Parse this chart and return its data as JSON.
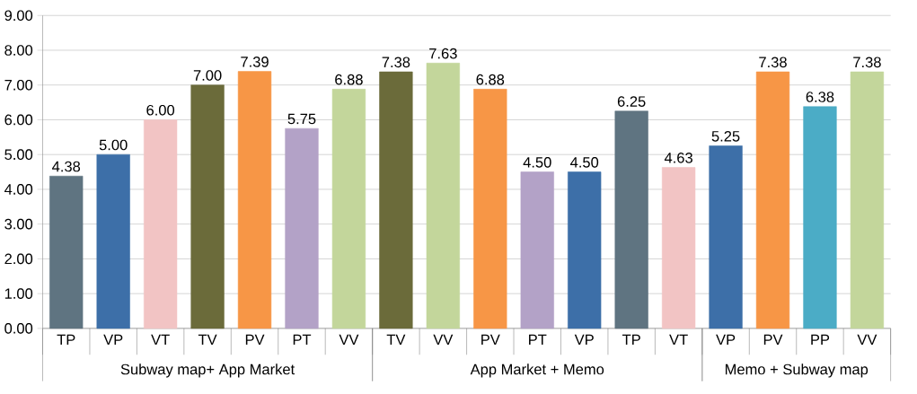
{
  "chart_data": {
    "type": "bar",
    "categories": [
      "TP",
      "VP",
      "VT",
      "TV",
      "PV",
      "PT",
      "VV",
      "TV",
      "VV",
      "PV",
      "PT",
      "VP",
      "TP",
      "VT",
      "VP",
      "PV",
      "PP",
      "VV"
    ],
    "values": [
      4.38,
      5.0,
      6.0,
      7.0,
      7.39,
      5.75,
      6.88,
      7.38,
      7.63,
      6.88,
      4.5,
      4.5,
      6.25,
      4.63,
      5.25,
      7.38,
      6.38,
      7.38
    ],
    "value_labels": [
      "4.38",
      "5.00",
      "6.00",
      "7.00",
      "7.39",
      "5.75",
      "6.88",
      "7.38",
      "7.63",
      "6.88",
      "4.50",
      "4.50",
      "6.25",
      "4.63",
      "5.25",
      "7.38",
      "6.38",
      "7.38"
    ],
    "colors": [
      "#5f7481",
      "#3d6fa8",
      "#f2c4c4",
      "#6b6b3a",
      "#f79646",
      "#b3a2c7",
      "#c3d69b",
      "#6b6b3a",
      "#c3d69b",
      "#f79646",
      "#b3a2c7",
      "#3d6fa8",
      "#5f7481",
      "#f2c4c4",
      "#3d6fa8",
      "#f79646",
      "#4bacc6",
      "#c3d69b"
    ],
    "ylim": [
      0,
      9
    ],
    "yticks": [
      {
        "value": 0,
        "label": "0.00"
      },
      {
        "value": 1,
        "label": "1.00"
      },
      {
        "value": 2,
        "label": "2.00"
      },
      {
        "value": 3,
        "label": "3.00"
      },
      {
        "value": 4,
        "label": "4.00"
      },
      {
        "value": 5,
        "label": "5.00"
      },
      {
        "value": 6,
        "label": "6.00"
      },
      {
        "value": 7,
        "label": "7.00"
      },
      {
        "value": 8,
        "label": "8.00"
      },
      {
        "value": 9,
        "label": "9.00"
      }
    ],
    "grid": "y",
    "annotations": [
      "Subway map+ App Market",
      "App Market + Memo",
      "Memo + Subway map"
    ]
  }
}
